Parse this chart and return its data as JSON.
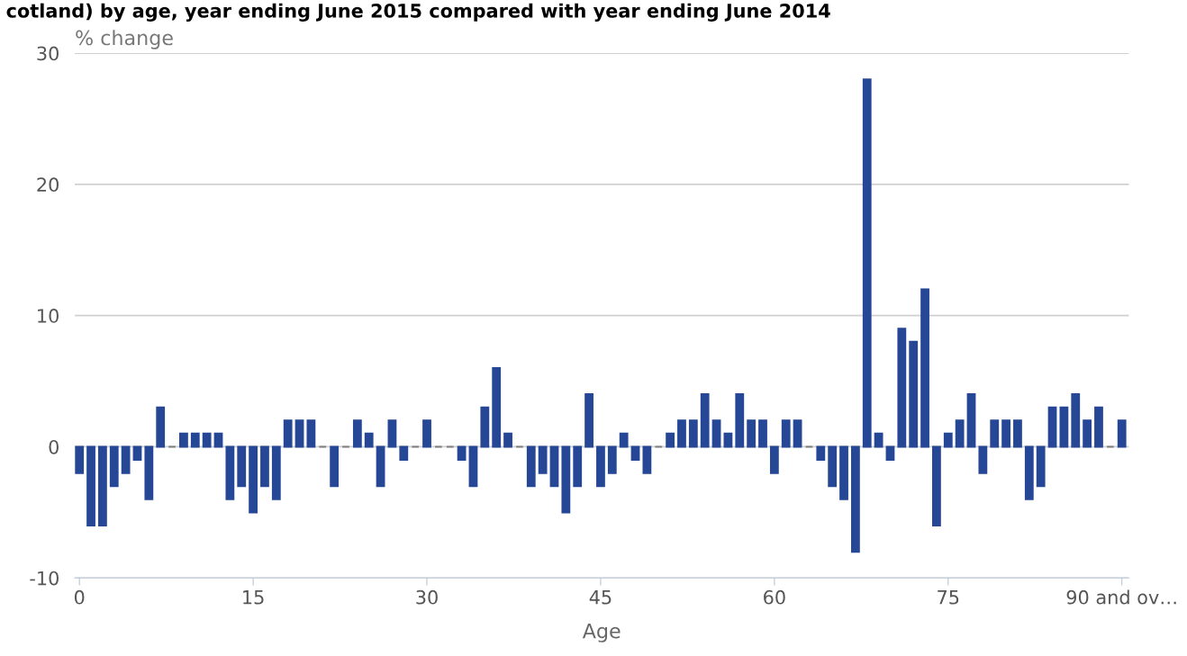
{
  "chart_data": {
    "type": "bar",
    "title": "cotland) by age, year ending June 2015 compared with year ending June 2014",
    "ylabel": "% change",
    "xlabel": "Age",
    "categories": [
      "0",
      null,
      null,
      null,
      null,
      null,
      null,
      null,
      null,
      null,
      null,
      null,
      null,
      null,
      null,
      "15",
      null,
      null,
      null,
      null,
      null,
      null,
      null,
      null,
      null,
      null,
      null,
      null,
      null,
      null,
      "30",
      null,
      null,
      null,
      null,
      null,
      null,
      null,
      null,
      null,
      null,
      null,
      null,
      null,
      null,
      "45",
      null,
      null,
      null,
      null,
      null,
      null,
      null,
      null,
      null,
      null,
      null,
      null,
      null,
      null,
      "60",
      null,
      null,
      null,
      null,
      null,
      null,
      null,
      null,
      null,
      null,
      null,
      null,
      null,
      null,
      "75",
      null,
      null,
      null,
      null,
      null,
      null,
      null,
      null,
      null,
      null,
      null,
      null,
      null,
      null,
      "90 and ov…"
    ],
    "values": [
      -2,
      -6,
      -6,
      -3,
      -2,
      -1,
      -4,
      3,
      0,
      1,
      1,
      1,
      1,
      -4,
      -3,
      -5,
      -3,
      -4,
      2,
      2,
      2,
      0,
      -3,
      0,
      2,
      1,
      -3,
      2,
      -1,
      0,
      2,
      0,
      0,
      -1,
      -3,
      3,
      6,
      1,
      0,
      -3,
      -2,
      -3,
      -5,
      -3,
      4,
      -3,
      -2,
      1,
      -1,
      -2,
      0,
      1,
      2,
      2,
      4,
      2,
      1,
      4,
      2,
      2,
      -2,
      2,
      2,
      0,
      -1,
      -3,
      -4,
      -8,
      28,
      1,
      -1,
      9,
      8,
      12,
      -6,
      1,
      2,
      4,
      -2,
      2,
      2,
      2,
      -4,
      -3,
      3,
      3,
      4,
      2,
      3,
      0,
      2
    ],
    "colors": [
      "#264796",
      "#264796",
      "#264796",
      "#264796",
      "#264796",
      "#264796",
      "#264796",
      "#264796",
      "#7f7f7f",
      "#264796",
      "#264796",
      "#264796",
      "#264796",
      "#264796",
      "#264796",
      "#264796",
      "#264796",
      "#264796",
      "#264796",
      "#264796",
      "#264796",
      "#7f7f7f",
      "#264796",
      "#7f7f7f",
      "#264796",
      "#264796",
      "#264796",
      "#264796",
      "#264796",
      "#7f7f7f",
      "#264796",
      "#7f7f7f",
      "#7f7f7f",
      "#264796",
      "#264796",
      "#264796",
      "#264796",
      "#264796",
      "#7f7f7f",
      "#264796",
      "#264796",
      "#264796",
      "#264796",
      "#264796",
      "#264796",
      "#264796",
      "#264796",
      "#264796",
      "#264796",
      "#264796",
      "#7f7f7f",
      "#264796",
      "#264796",
      "#264796",
      "#264796",
      "#264796",
      "#264796",
      "#264796",
      "#264796",
      "#264796",
      "#264796",
      "#264796",
      "#264796",
      "#7f7f7f",
      "#264796",
      "#264796",
      "#264796",
      "#264796",
      "#264796",
      "#264796",
      "#264796",
      "#264796",
      "#264796",
      "#264796",
      "#264796",
      "#264796",
      "#264796",
      "#264796",
      "#264796",
      "#264796",
      "#264796",
      "#264796",
      "#264796",
      "#264796",
      "#264796",
      "#264796",
      "#264796",
      "#264796",
      "#264796",
      "#7f7f7f",
      "#264796"
    ],
    "ylim": [
      -10,
      30
    ],
    "yticks": [
      -10,
      0,
      10,
      20,
      30
    ],
    "grid": "y",
    "legend": false
  }
}
